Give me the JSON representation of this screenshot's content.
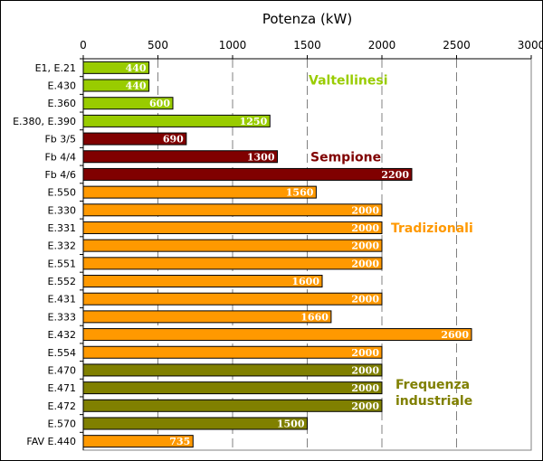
{
  "chart_data": {
    "type": "bar",
    "orientation": "horizontal",
    "title": "Potenza (kW)",
    "xlim": [
      0,
      3000
    ],
    "x_ticks": [
      0,
      500,
      1000,
      1500,
      2000,
      2500,
      3000
    ],
    "grid": "vertical dashed",
    "categories": [
      "E1, E.21",
      "E.430",
      "E.360",
      "E.380, E.390",
      "Fb 3/5",
      "Fb 4/4",
      "Fb 4/6",
      "E.550",
      "E.330",
      "E.331",
      "E.332",
      "E.551",
      "E.552",
      "E.431",
      "E.333",
      "E.432",
      "E.554",
      "E.470",
      "E.471",
      "E.472",
      "E.570",
      "FAV E.440"
    ],
    "values": [
      440,
      440,
      600,
      1250,
      690,
      1300,
      2200,
      1560,
      2000,
      2000,
      2000,
      2000,
      1600,
      2000,
      1660,
      2600,
      2000,
      2000,
      2000,
      2000,
      1500,
      735
    ],
    "groups": [
      "Valtellinesi",
      "Valtellinesi",
      "Valtellinesi",
      "Valtellinesi",
      "Sempione",
      "Sempione",
      "Sempione",
      "Tradizionali",
      "Tradizionali",
      "Tradizionali",
      "Tradizionali",
      "Tradizionali",
      "Tradizionali",
      "Tradizionali",
      "Tradizionali",
      "Tradizionali",
      "Tradizionali",
      "Frequenza industriale",
      "Frequenza industriale",
      "Frequenza industriale",
      "Frequenza industriale",
      "Tradizionali"
    ],
    "group_labels": [
      {
        "name": "Valtellinesi",
        "lines": [
          "Valtellinesi"
        ],
        "color": "#99cc00"
      },
      {
        "name": "Sempione",
        "lines": [
          "Sempione"
        ],
        "color": "#800000"
      },
      {
        "name": "Tradizionali",
        "lines": [
          "Tradizionali"
        ],
        "color": "#ff9900"
      },
      {
        "name": "Frequenza industriale",
        "lines": [
          "Frequenza",
          "industriale"
        ],
        "color": "#808000"
      }
    ],
    "colors": {
      "Valtellinesi": "#99cc00",
      "Sempione": "#800000",
      "Tradizionali": "#ff9900",
      "Frequenza industriale": "#808000"
    }
  }
}
